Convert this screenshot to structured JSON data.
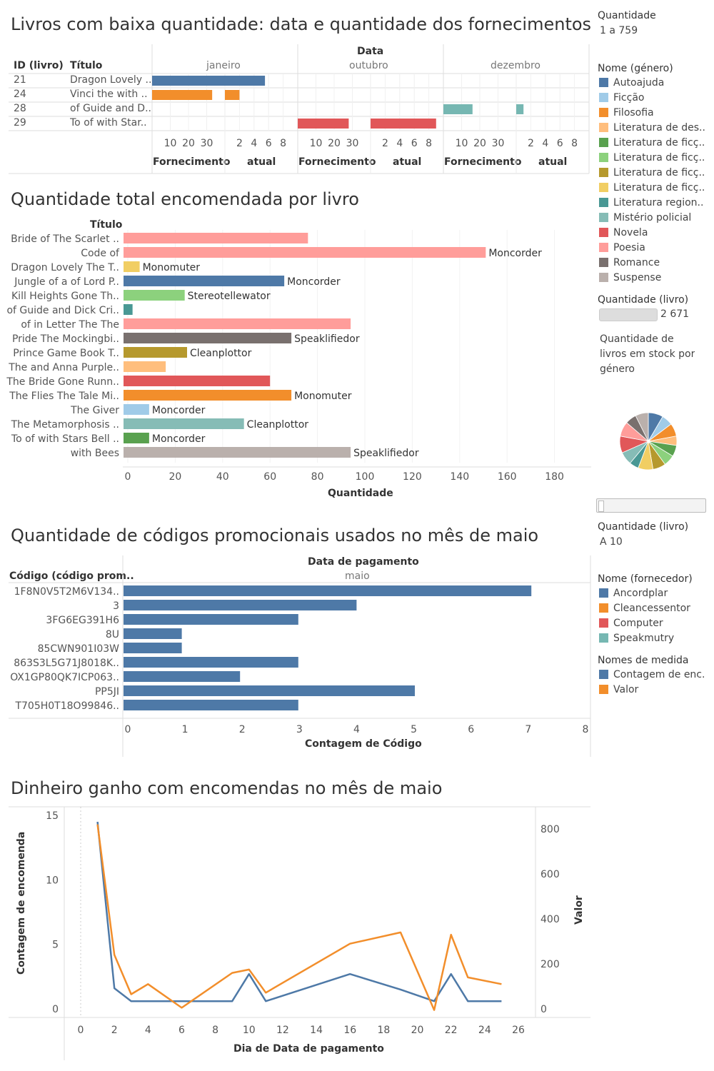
{
  "titles": {
    "low_stock": "Livros com baixa quantidade: data e quantidade dos fornecimentos",
    "total_ordered": "Quantidade total encomendada por livro",
    "promo_codes": "Quantidade de códigos promocionais usados no mês de maio",
    "money_earned": "Dinheiro ganho com encomendas no mês de maio"
  },
  "sidebar": {
    "quantidade_title": "Quantidade",
    "quantidade_range": "1 a 759",
    "genre_legend_title": "Nome (género)",
    "genres": [
      {
        "name": "Autoajuda",
        "color": "#4e79a7"
      },
      {
        "name": "Ficção",
        "color": "#a0cbe8"
      },
      {
        "name": "Filosofia",
        "color": "#f28e2b"
      },
      {
        "name": "Literatura de des..",
        "color": "#ffbe7d"
      },
      {
        "name": "Literatura de ficç..",
        "color": "#59a14f"
      },
      {
        "name": "Literatura de ficç..",
        "color": "#8cd17d"
      },
      {
        "name": "Literatura de ficç..",
        "color": "#b6992d"
      },
      {
        "name": "Literatura de ficç..",
        "color": "#f1ce63"
      },
      {
        "name": "Literatura region..",
        "color": "#499894"
      },
      {
        "name": "Mistério policial",
        "color": "#86bcb6"
      },
      {
        "name": "Novela",
        "color": "#e15759"
      },
      {
        "name": "Poesia",
        "color": "#ff9d9a"
      },
      {
        "name": "Romance",
        "color": "#79706e"
      },
      {
        "name": "Suspense",
        "color": "#bab0ac"
      }
    ],
    "qty_livro_title": "Quantidade (livro)",
    "qty_livro_value": "2 671",
    "stock_caption_1": "Quantidade de",
    "stock_caption_2": "livros em stock por",
    "stock_caption_3": "género",
    "qty_livro2_title": "Quantidade (livro)",
    "qty_livro2_value": "A 10",
    "supplier_legend_title": "Nome (fornecedor)",
    "suppliers": [
      {
        "name": "Ancordplar",
        "color": "#4e79a7"
      },
      {
        "name": "Cleancessentor",
        "color": "#f28e2b"
      },
      {
        "name": "Computer",
        "color": "#e15759"
      },
      {
        "name": "Speakmutry",
        "color": "#76b7b2"
      }
    ],
    "measure_legend_title": "Nomes de medida",
    "measures": [
      {
        "name": "Contagem de enc..",
        "color": "#4e79a7"
      },
      {
        "name": "Valor",
        "color": "#f28e2b"
      }
    ]
  },
  "chart_data": [
    {
      "type": "bar",
      "title": "Livros com baixa quantidade: data e quantidade dos fornecimentos",
      "col_headers": {
        "id": "ID (livro)",
        "title": "Título",
        "top": "Data"
      },
      "months": [
        "janeiro",
        "outubro",
        "dezembro"
      ],
      "subpanel_labels": [
        "Fornecimento",
        "atual",
        "Fornecimento",
        "atual",
        "Fornecimento",
        "atual"
      ],
      "fornecimento_ticks": [
        10,
        20,
        30
      ],
      "atual_ticks": [
        2,
        4,
        6,
        8
      ],
      "rows": [
        {
          "id": "21",
          "title": "Dragon Lovely ..",
          "color": "#4e79a7",
          "month": 0,
          "fornecimento": 42,
          "atual": 5.5
        },
        {
          "id": "24",
          "title": "Vinci the with ..",
          "color": "#f28e2b",
          "month": 0,
          "fornecimento": 33,
          "atual": 2
        },
        {
          "id": "28",
          "title": "of Guide and D..",
          "color": "#76b7b2",
          "month": 2,
          "fornecimento": 16,
          "atual": 1
        },
        {
          "id": "29",
          "title": "To of with Star..",
          "color": "#e15759",
          "month": 1,
          "fornecimento": 28,
          "atual": 9
        }
      ]
    },
    {
      "type": "bar",
      "title": "Quantidade total encomendada por livro",
      "ylabel": "Título",
      "xlabel": "Quantidade",
      "xlim": [
        0,
        180
      ],
      "xticks": [
        0,
        20,
        40,
        60,
        80,
        100,
        120,
        140,
        160,
        180
      ],
      "bars": [
        {
          "category": "Bride of The Scarlet ..",
          "value": 76,
          "color": "#ff9d9a",
          "label": ""
        },
        {
          "category": "Code of",
          "value": 151,
          "color": "#ff9d9a",
          "label": "Moncorder"
        },
        {
          "category": "Dragon Lovely The T..",
          "value": 5,
          "color": "#f1ce63",
          "label": "Monomuter"
        },
        {
          "category": "Jungle of a of Lord P..",
          "value": 66,
          "color": "#4e79a7",
          "label": "Moncorder"
        },
        {
          "category": "Kill Heights Gone Th..",
          "value": 24,
          "color": "#8cd17d",
          "label": "Stereotellewator"
        },
        {
          "category": "of Guide and Dick Cri..",
          "value": 2,
          "color": "#499894",
          "label": ""
        },
        {
          "category": "of in Letter The The",
          "value": 94,
          "color": "#ff9d9a",
          "label": ""
        },
        {
          "category": "Pride The Mockingbi..",
          "value": 69,
          "color": "#79706e",
          "label": "Speaklifiedor"
        },
        {
          "category": "Prince Game Book T..",
          "value": 25,
          "color": "#b6992d",
          "label": "Cleanplottor"
        },
        {
          "category": "The and Anna Purple..",
          "value": 16,
          "color": "#ffbe7d",
          "label": ""
        },
        {
          "category": "The Bride Gone Runn..",
          "value": 60,
          "color": "#e15759",
          "label": ""
        },
        {
          "category": "The Flies The Tale Mi..",
          "value": 69,
          "color": "#f28e2b",
          "label": "Monomuter"
        },
        {
          "category": "The Giver",
          "value": 9,
          "color": "#a0cbe8",
          "label": "Moncorder"
        },
        {
          "category": "The Metamorphosis ..",
          "value": 49,
          "color": "#86bcb6",
          "label": "Cleanplottor"
        },
        {
          "category": "To of with Stars Bell ..",
          "value": 9,
          "color": "#59a14f",
          "label": "Moncorder"
        },
        {
          "category": "with Bees",
          "value": 94,
          "color": "#bab0ac",
          "label": "Speaklifiedor"
        }
      ]
    },
    {
      "type": "pie",
      "title": "Quantidade de livros em stock por género",
      "slices": [
        {
          "name": "Autoajuda",
          "value": 8,
          "color": "#4e79a7"
        },
        {
          "name": "Ficção",
          "value": 6,
          "color": "#a0cbe8"
        },
        {
          "name": "Filosofia",
          "value": 7,
          "color": "#f28e2b"
        },
        {
          "name": "Literatura de des..",
          "value": 5,
          "color": "#ffbe7d"
        },
        {
          "name": "Literatura de ficç..",
          "value": 6,
          "color": "#59a14f"
        },
        {
          "name": "Literatura de ficç..",
          "value": 6,
          "color": "#8cd17d"
        },
        {
          "name": "Literatura de ficç..",
          "value": 7,
          "color": "#b6992d"
        },
        {
          "name": "Literatura de ficç..",
          "value": 8,
          "color": "#f1ce63"
        },
        {
          "name": "Literatura region..",
          "value": 5,
          "color": "#499894"
        },
        {
          "name": "Mistério policial",
          "value": 7,
          "color": "#86bcb6"
        },
        {
          "name": "Novela",
          "value": 9,
          "color": "#e15759"
        },
        {
          "name": "Poesia",
          "value": 8,
          "color": "#ff9d9a"
        },
        {
          "name": "Romance",
          "value": 6,
          "color": "#79706e"
        },
        {
          "name": "Suspense",
          "value": 7,
          "color": "#bab0ac"
        }
      ]
    },
    {
      "type": "bar",
      "title": "Quantidade de códigos promocionais usados no mês de maio",
      "ylabel": "Código (código prom..",
      "top_header": "Data de pagamento",
      "month": "maio",
      "xlabel": "Contagem de Código",
      "xlim": [
        0,
        8
      ],
      "xticks": [
        0,
        1,
        2,
        3,
        4,
        5,
        6,
        7,
        8
      ],
      "color": "#4e79a7",
      "categories": [
        "1F8N0V5T2M6V134..",
        "3",
        "3FG6EG391H6",
        "8U",
        "85CWN901I03W",
        "863S3L5G71J8018K..",
        "OX1GP80QK7ICP063..",
        "PP5JI",
        "T705H0T18O99846.."
      ],
      "values": [
        7,
        4,
        3,
        1,
        1,
        3,
        2,
        5,
        3
      ]
    },
    {
      "type": "line",
      "title": "Dinheiro ganho com encomendas no mês de maio",
      "xlabel": "Dia de Data de pagamento",
      "ylabel_left": "Contagem de encomenda",
      "ylabel_right": "Valor",
      "xlim": [
        -1,
        27
      ],
      "xticks": [
        0,
        2,
        4,
        6,
        8,
        10,
        12,
        14,
        16,
        18,
        20,
        22,
        24,
        26
      ],
      "ylim_left": [
        -0.6,
        15.8
      ],
      "yticks_left": [
        0,
        5,
        10,
        15
      ],
      "ylim_right": [
        -35,
        880
      ],
      "yticks_right": [
        0,
        200,
        400,
        600,
        800
      ],
      "series": [
        {
          "name": "Contagem de enc..",
          "axis": "left",
          "color": "#4e79a7",
          "x": [
            1,
            2,
            3,
            4,
            5,
            6,
            7,
            8,
            9,
            10,
            11,
            16,
            19,
            21,
            22,
            23,
            24,
            25
          ],
          "y": [
            14.5,
            1.6,
            0.6,
            0.6,
            0.6,
            0.6,
            0.6,
            0.6,
            0.6,
            2.7,
            0.6,
            2.7,
            1.5,
            0.6,
            2.7,
            0.6,
            0.6,
            0.6
          ]
        },
        {
          "name": "Valor",
          "axis": "right",
          "color": "#f28e2b",
          "x": [
            1,
            2,
            3,
            4,
            6,
            9,
            10,
            11,
            16,
            19,
            21,
            22,
            23,
            25
          ],
          "y": [
            820,
            240,
            65,
            110,
            5,
            160,
            175,
            72,
            290,
            340,
            -5,
            330,
            140,
            110
          ]
        }
      ]
    }
  ]
}
